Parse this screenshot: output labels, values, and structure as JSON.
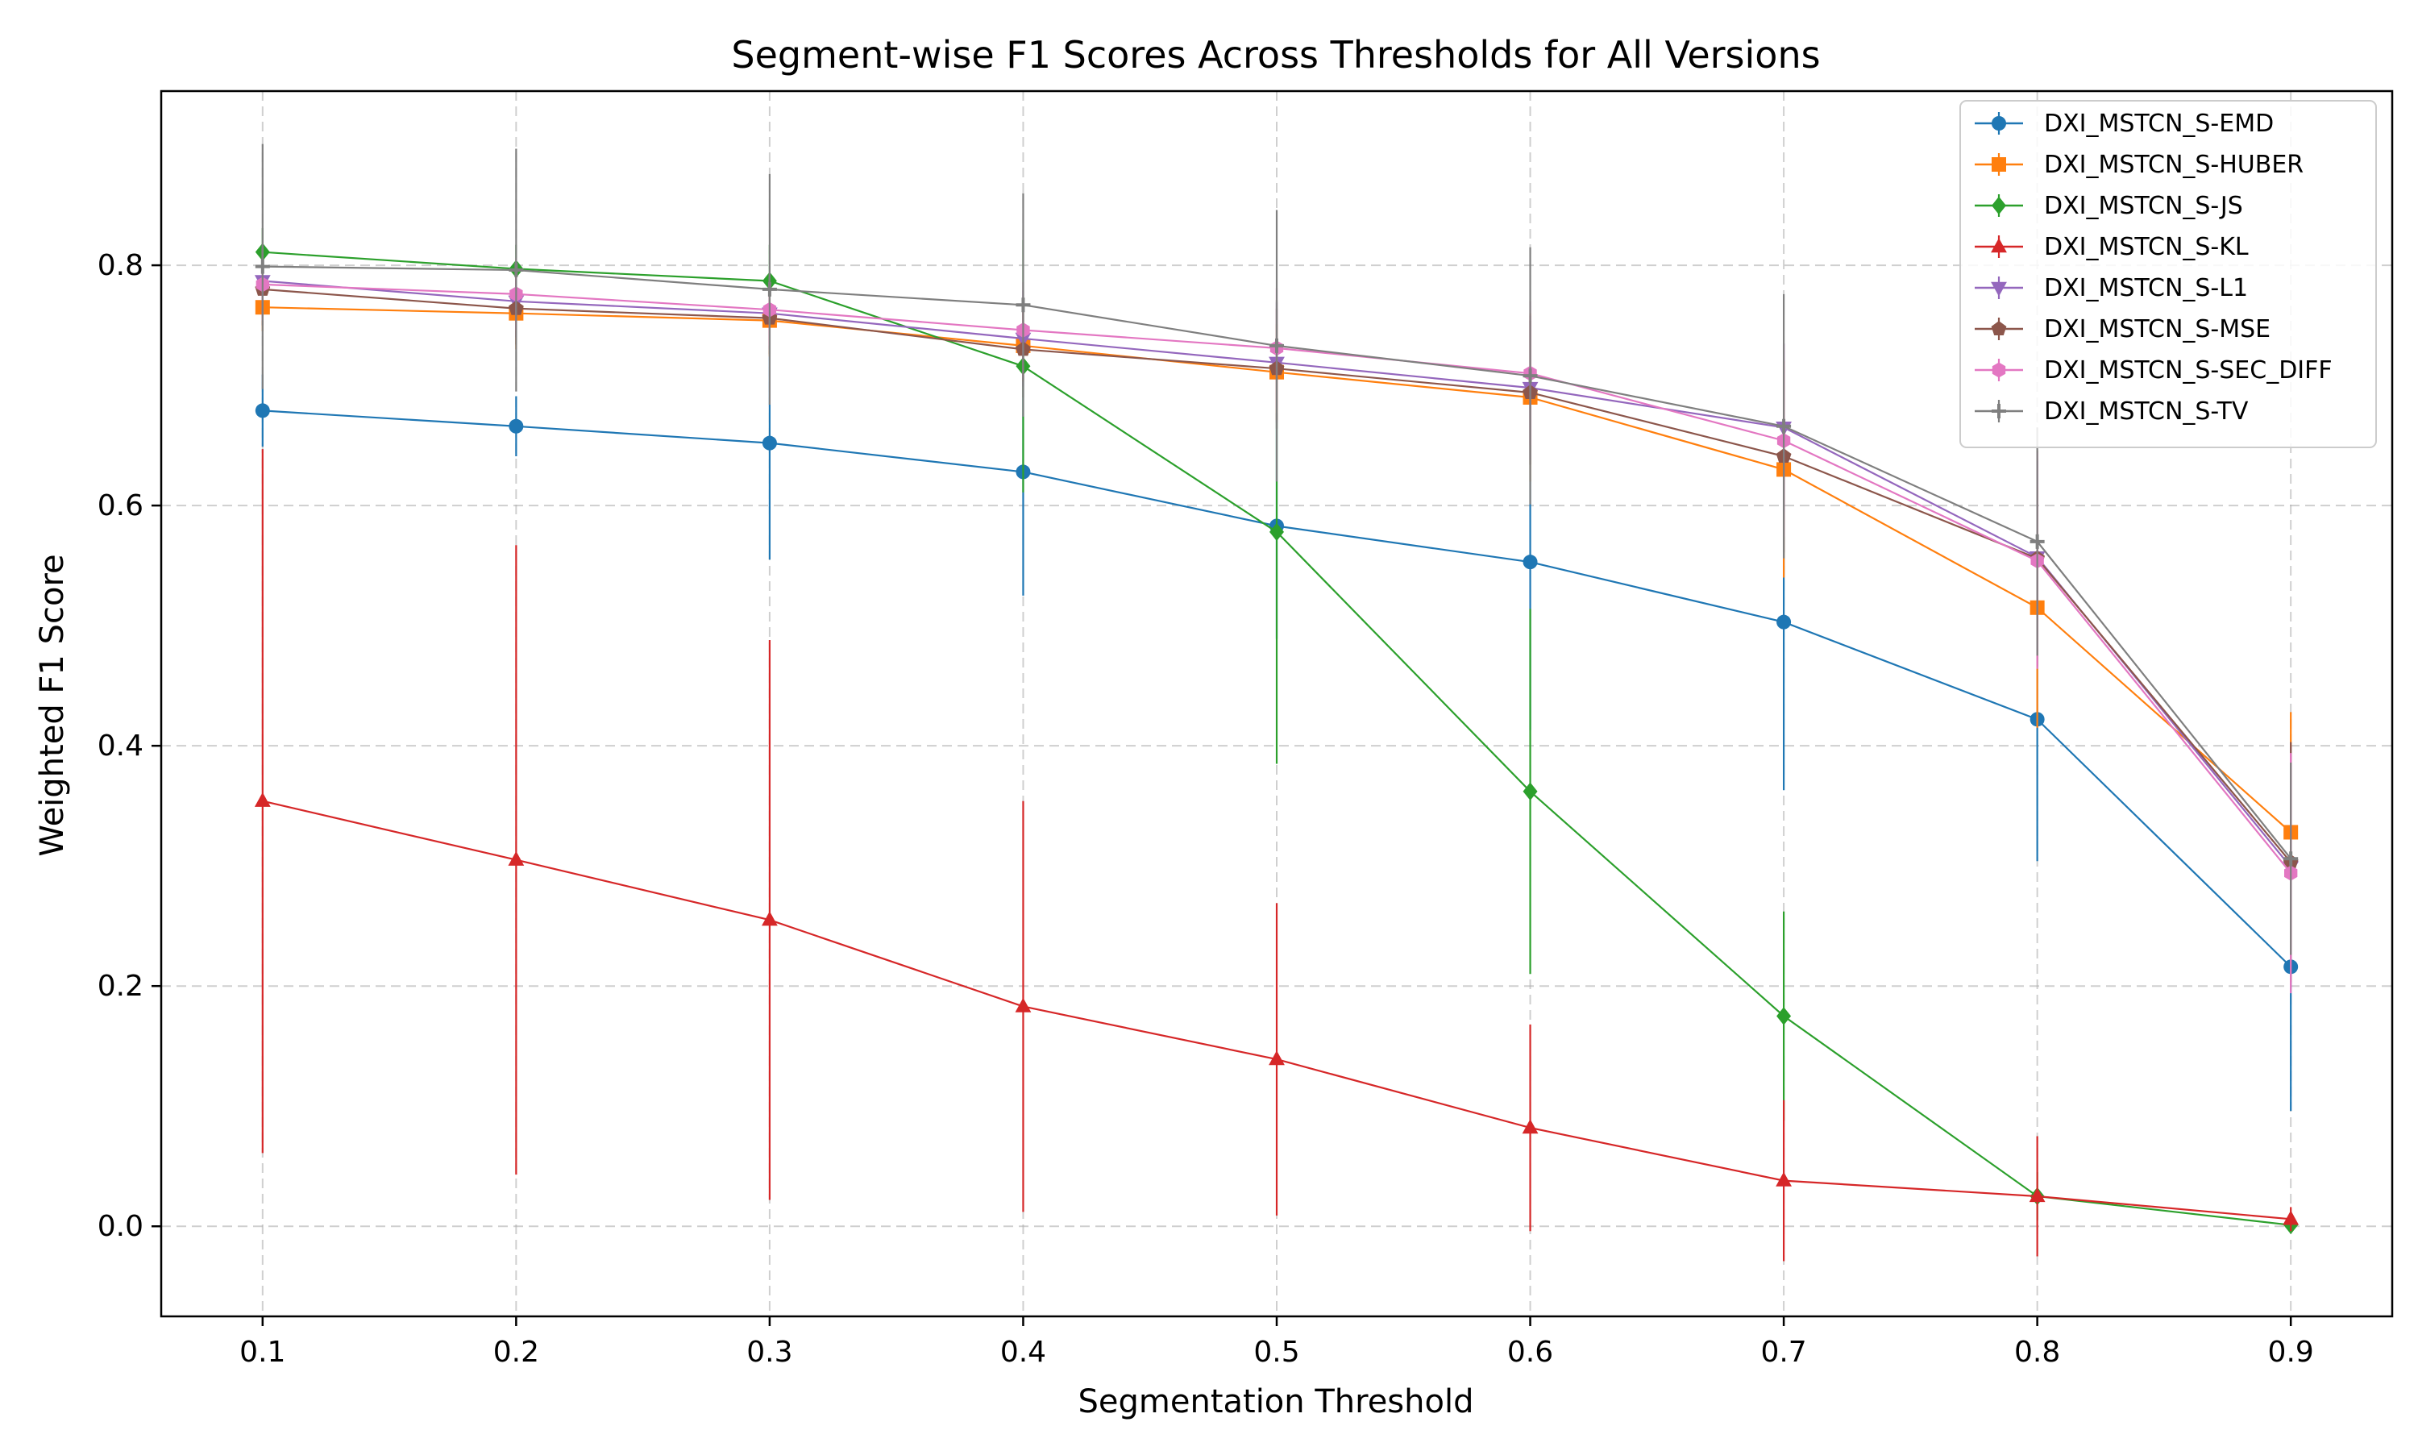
{
  "chart_data": {
    "type": "line",
    "title": "Segment-wise F1 Scores Across Thresholds for All Versions",
    "xlabel": "Segmentation Threshold",
    "ylabel": "Weighted F1 Score",
    "x": [
      0.1,
      0.2,
      0.3,
      0.4,
      0.5,
      0.6,
      0.7,
      0.8,
      0.9
    ],
    "x_ticks": [
      "0.1",
      "0.2",
      "0.3",
      "0.4",
      "0.5",
      "0.6",
      "0.7",
      "0.8",
      "0.9"
    ],
    "y_ticks": [
      "0.0",
      "0.2",
      "0.4",
      "0.6",
      "0.8"
    ],
    "xlim": [
      0.06,
      0.94
    ],
    "ylim": [
      -0.075,
      0.945
    ],
    "grid": true,
    "legend_position": "top-right",
    "series": [
      {
        "name": "DXI_MSTCN_S-EMD",
        "color": "#1f77b4",
        "marker": "circle",
        "values": [
          0.679,
          0.666,
          0.652,
          0.628,
          0.583,
          0.553,
          0.503,
          0.422,
          0.216
        ],
        "errors": [
          0.03,
          0.025,
          0.097,
          0.103,
          0.094,
          0.14,
          0.14,
          0.118,
          0.12
        ]
      },
      {
        "name": "DXI_MSTCN_S-HUBER",
        "color": "#ff7f0e",
        "marker": "square",
        "values": [
          0.765,
          0.76,
          0.754,
          0.733,
          0.711,
          0.69,
          0.63,
          0.515,
          0.328
        ],
        "errors": [
          0.02,
          0.03,
          0.03,
          0.03,
          0.04,
          0.07,
          0.09,
          0.1,
          0.1
        ]
      },
      {
        "name": "DXI_MSTCN_S-JS",
        "color": "#2ca02c",
        "marker": "diamond",
        "values": [
          0.811,
          0.797,
          0.787,
          0.716,
          0.578,
          0.362,
          0.175,
          0.025,
          0.001
        ],
        "errors": [
          0.02,
          0.02,
          0.03,
          0.105,
          0.193,
          0.152,
          0.087,
          0.02,
          0.005
        ]
      },
      {
        "name": "DXI_MSTCN_S-KL",
        "color": "#d62728",
        "marker": "triangle-up",
        "values": [
          0.354,
          0.305,
          0.255,
          0.183,
          0.139,
          0.082,
          0.038,
          0.025,
          0.006
        ],
        "errors": [
          0.293,
          0.262,
          0.233,
          0.171,
          0.13,
          0.086,
          0.067,
          0.05,
          0.01
        ]
      },
      {
        "name": "DXI_MSTCN_S-L1",
        "color": "#9467bd",
        "marker": "triangle-down",
        "values": [
          0.787,
          0.77,
          0.76,
          0.739,
          0.719,
          0.698,
          0.665,
          0.557,
          0.299
        ],
        "errors": [
          0.03,
          0.03,
          0.03,
          0.04,
          0.05,
          0.06,
          0.07,
          0.08,
          0.1
        ]
      },
      {
        "name": "DXI_MSTCN_S-MSE",
        "color": "#8c564b",
        "marker": "pentagon",
        "values": [
          0.78,
          0.764,
          0.756,
          0.73,
          0.714,
          0.694,
          0.641,
          0.556,
          0.303
        ],
        "errors": [
          0.03,
          0.03,
          0.03,
          0.04,
          0.05,
          0.06,
          0.08,
          0.09,
          0.1
        ]
      },
      {
        "name": "DXI_MSTCN_S-SEC_DIFF",
        "color": "#e377c2",
        "marker": "hexagon",
        "values": [
          0.784,
          0.776,
          0.763,
          0.746,
          0.731,
          0.71,
          0.654,
          0.554,
          0.294
        ],
        "errors": [
          0.03,
          0.03,
          0.03,
          0.04,
          0.05,
          0.06,
          0.08,
          0.09,
          0.1
        ]
      },
      {
        "name": "DXI_MSTCN_S-TV",
        "color": "#7f7f7f",
        "marker": "plus",
        "values": [
          0.799,
          0.796,
          0.78,
          0.767,
          0.733,
          0.708,
          0.666,
          0.57,
          0.306
        ],
        "errors": [
          0.102,
          0.101,
          0.096,
          0.093,
          0.113,
          0.107,
          0.11,
          0.095,
          0.08
        ]
      }
    ]
  }
}
